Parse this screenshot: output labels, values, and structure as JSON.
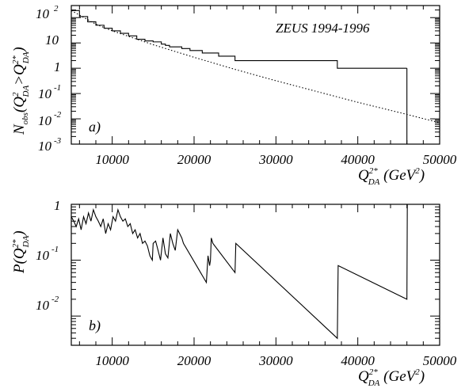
{
  "experiment_label": "ZEUS 1994-1996",
  "chart_data": [
    {
      "type": "line",
      "panel_label": "a)",
      "x_axis_title": "Q²*_DA (GeV²)",
      "y_axis_title": "N_obs(Q²_DA > Q²*_DA)",
      "xlim": [
        5000,
        50000
      ],
      "ylim": [
        0.001,
        300
      ],
      "y_scale": "log",
      "x_ticks": [
        10000,
        20000,
        30000,
        40000,
        50000
      ],
      "x_tick_labels": [
        "10000",
        "20000",
        "30000",
        "40000",
        "50000"
      ],
      "y_tick_labels": [
        "10 -3",
        "10 -2",
        "10 -1",
        "1",
        "10",
        "10 2"
      ],
      "series": [
        {
          "style": "solid-step",
          "x": [
            5000,
            6000,
            7000,
            8000,
            9000,
            10000,
            11000,
            12000,
            13000,
            14000,
            15000,
            16000,
            16500,
            17000,
            18000,
            18500,
            19500,
            21000,
            22000,
            23000,
            25000,
            37500,
            46000
          ],
          "y": [
            190,
            110,
            68,
            50,
            38,
            30,
            24,
            19,
            14,
            12,
            11,
            9,
            8,
            7,
            7,
            6,
            5,
            4,
            4,
            3,
            2,
            1,
            1
          ]
        },
        {
          "style": "dotted",
          "x": [
            5000,
            8000,
            10000,
            15000,
            20000,
            25000,
            30000,
            35000,
            40000,
            45000,
            50000
          ],
          "y": [
            190,
            55,
            30,
            8.5,
            2.7,
            0.9,
            0.32,
            0.12,
            0.045,
            0.018,
            0.007
          ]
        }
      ]
    },
    {
      "type": "line",
      "panel_label": "b)",
      "x_axis_title": "Q²*_DA (GeV²)",
      "y_axis_title": "P(Q²*_DA)",
      "xlim": [
        5000,
        50000
      ],
      "ylim": [
        0.003,
        1
      ],
      "y_scale": "log",
      "x_ticks": [
        10000,
        20000,
        30000,
        40000,
        50000
      ],
      "x_tick_labels": [
        "10000",
        "20000",
        "30000",
        "40000",
        "50000"
      ],
      "y_tick_labels": [
        "10 -2",
        "10 -1",
        "1"
      ],
      "series": [
        {
          "style": "solid",
          "x": [
            5000,
            5300,
            5600,
            5900,
            6200,
            6500,
            6800,
            7100,
            7400,
            7700,
            8000,
            8300,
            8600,
            8900,
            9200,
            9500,
            9800,
            10100,
            10400,
            10700,
            11000,
            11300,
            11600,
            11900,
            12200,
            12500,
            12800,
            13100,
            13400,
            13700,
            14000,
            14300,
            14600,
            14900,
            15000,
            15300,
            15600,
            15900,
            16200,
            16500,
            16800,
            17100,
            17400,
            17700,
            18000,
            18500,
            18700,
            21500,
            21700,
            21900,
            22000,
            22100,
            22300,
            25000,
            25100,
            37500,
            37600,
            46000,
            46050,
            46100
          ],
          "y": [
            0.6,
            0.5,
            0.4,
            0.55,
            0.35,
            0.6,
            0.45,
            0.7,
            0.5,
            0.8,
            0.6,
            0.5,
            0.4,
            0.55,
            0.3,
            0.45,
            0.35,
            0.6,
            0.5,
            0.8,
            0.6,
            0.5,
            0.55,
            0.4,
            0.45,
            0.3,
            0.35,
            0.25,
            0.3,
            0.2,
            0.22,
            0.18,
            0.12,
            0.1,
            0.2,
            0.22,
            0.15,
            0.1,
            0.25,
            0.13,
            0.11,
            0.3,
            0.2,
            0.15,
            0.35,
            0.25,
            0.2,
            0.04,
            0.12,
            0.08,
            0.1,
            0.25,
            0.2,
            0.06,
            0.2,
            0.004,
            0.08,
            0.02,
            1.0,
            1.0
          ]
        }
      ]
    }
  ]
}
